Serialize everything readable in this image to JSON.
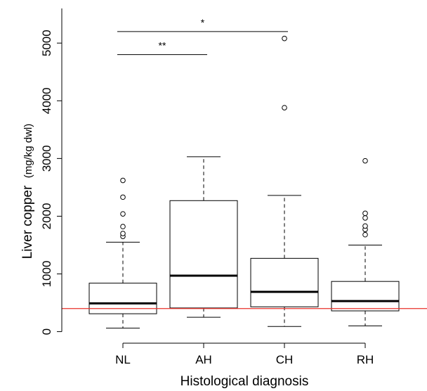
{
  "chart_data": {
    "type": "box",
    "xlabel": "Histological diagnosis",
    "ylabel_main": "Liver copper",
    "ylabel_unit": "(mg/kg dwl)",
    "categories": [
      "NL",
      "AH",
      "CH",
      "RH"
    ],
    "y_ticks": [
      0,
      1000,
      2000,
      3000,
      4000,
      5000
    ],
    "y_tick_labels": [
      "0",
      "1000",
      "2000",
      "3000",
      "4000",
      "5000"
    ],
    "ylim": [
      -200,
      5600
    ],
    "boxes": [
      {
        "category": "NL",
        "whisker_low": 60,
        "q1": 310,
        "median": 490,
        "q3": 840,
        "whisker_high": 1550,
        "outliers": [
          1650,
          1700,
          1820,
          2040,
          2330,
          2620
        ]
      },
      {
        "category": "AH",
        "whisker_low": 250,
        "q1": 410,
        "median": 970,
        "q3": 2270,
        "whisker_high": 3030,
        "outliers": []
      },
      {
        "category": "CH",
        "whisker_low": 90,
        "q1": 430,
        "median": 690,
        "q3": 1270,
        "whisker_high": 2360,
        "outliers": [
          3880,
          5080
        ]
      },
      {
        "category": "RH",
        "whisker_low": 100,
        "q1": 360,
        "median": 530,
        "q3": 870,
        "whisker_high": 1500,
        "outliers": [
          1680,
          1770,
          1830,
          1970,
          2050,
          2960
        ]
      }
    ],
    "reference_line": {
      "y": 400,
      "color": "#e8302a"
    },
    "significance": [
      {
        "from": "NL",
        "to": "AH",
        "y": 4800,
        "label": "**"
      },
      {
        "from": "NL",
        "to": "CH",
        "y": 5200,
        "label": "*"
      }
    ],
    "grid": false,
    "legend": "none"
  }
}
